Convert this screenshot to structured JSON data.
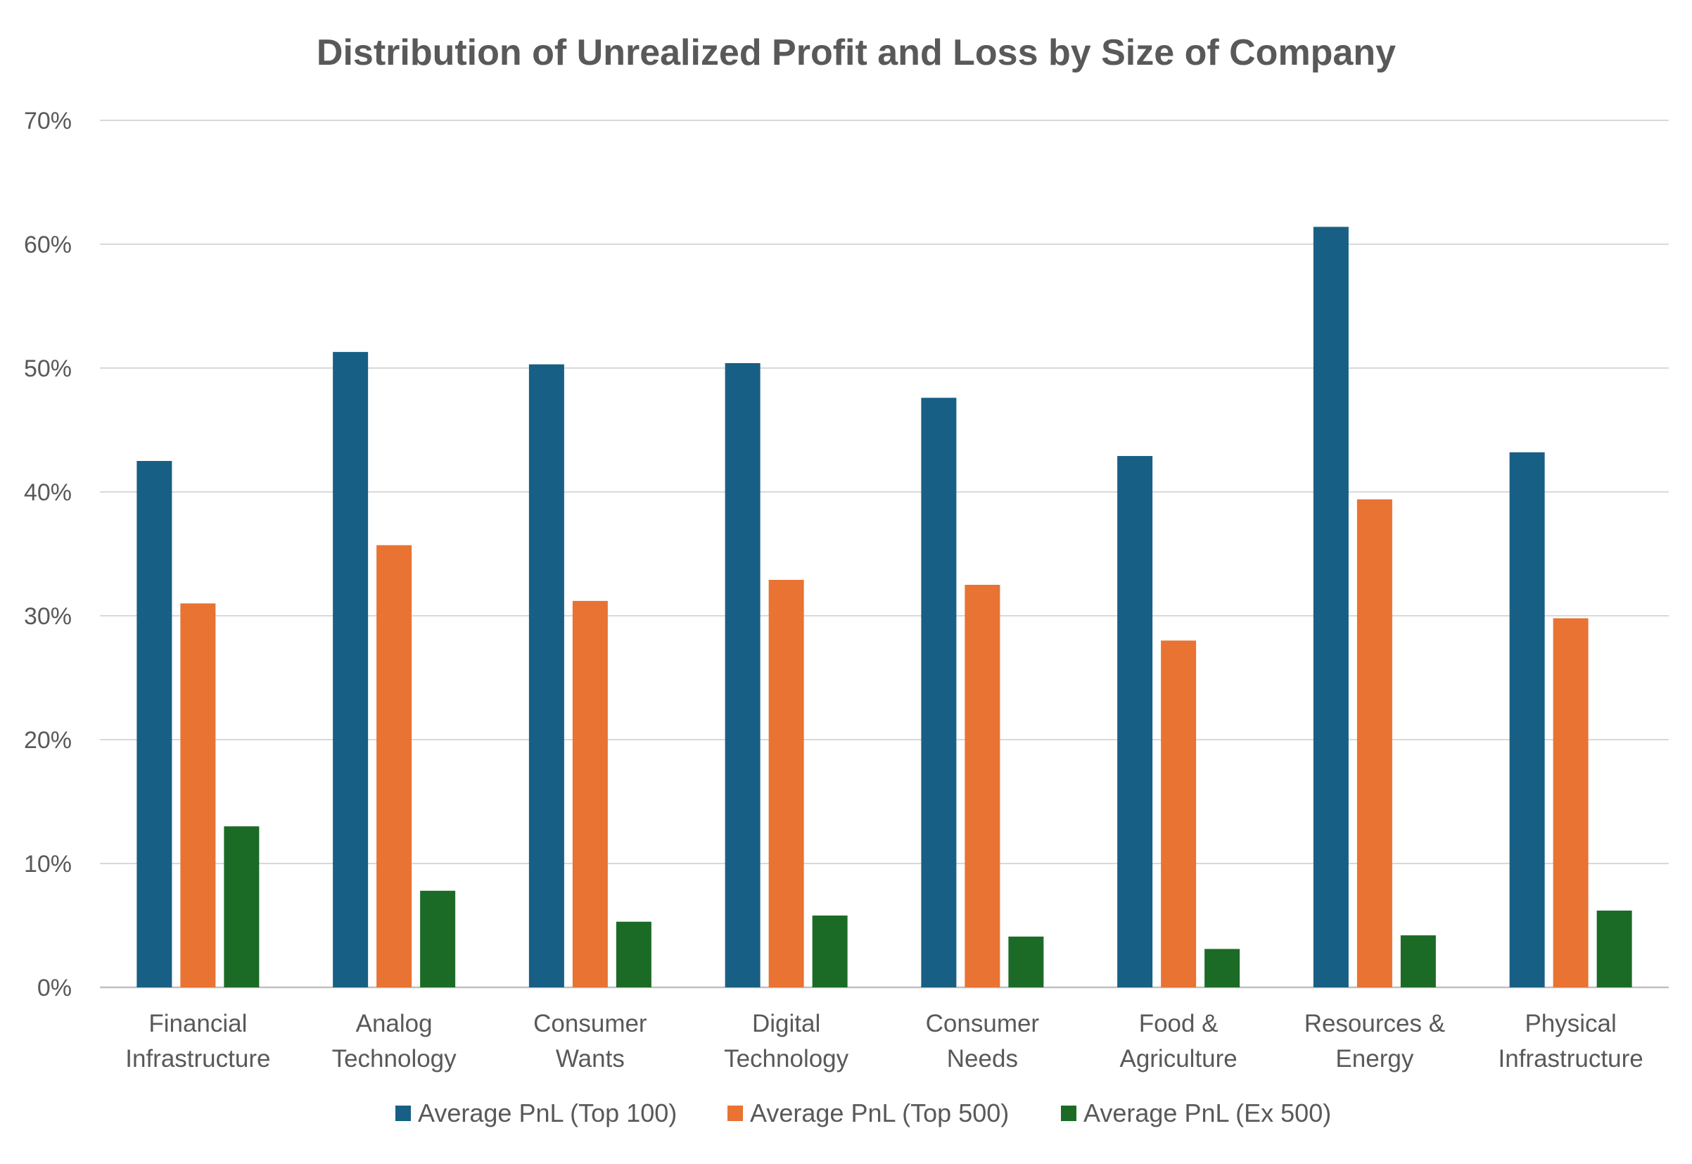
{
  "chart_data": {
    "type": "bar",
    "title": "Distribution of Unrealized Profit and Loss by Size of Company",
    "xlabel": "",
    "ylabel": "",
    "ylim": [
      0,
      70
    ],
    "yticks": [
      0,
      10,
      20,
      30,
      40,
      50,
      60,
      70
    ],
    "ytick_labels": [
      "0%",
      "10%",
      "20%",
      "30%",
      "40%",
      "50%",
      "60%",
      "70%"
    ],
    "grid": true,
    "legend_position": "bottom",
    "categories": [
      [
        "Financial",
        "Infrastructure"
      ],
      [
        "Analog",
        "Technology"
      ],
      [
        "Consumer",
        "Wants"
      ],
      [
        "Digital",
        "Technology"
      ],
      [
        "Consumer",
        "Needs"
      ],
      [
        "Food &",
        "Agriculture"
      ],
      [
        "Resources &",
        "Energy"
      ],
      [
        "Physical",
        "Infrastructure"
      ]
    ],
    "series": [
      {
        "name": "Average PnL (Top 100)",
        "color": "#185f85",
        "values": [
          42.5,
          51.3,
          50.3,
          50.4,
          47.6,
          42.9,
          61.4,
          43.2
        ]
      },
      {
        "name": "Average PnL (Top 500)",
        "color": "#e87333",
        "values": [
          31.0,
          35.7,
          31.2,
          32.9,
          32.5,
          28.0,
          39.4,
          29.8
        ]
      },
      {
        "name": "Average PnL (Ex 500)",
        "color": "#1b6b27",
        "values": [
          13.0,
          7.8,
          5.3,
          5.8,
          4.1,
          3.1,
          4.2,
          6.2
        ]
      }
    ]
  }
}
